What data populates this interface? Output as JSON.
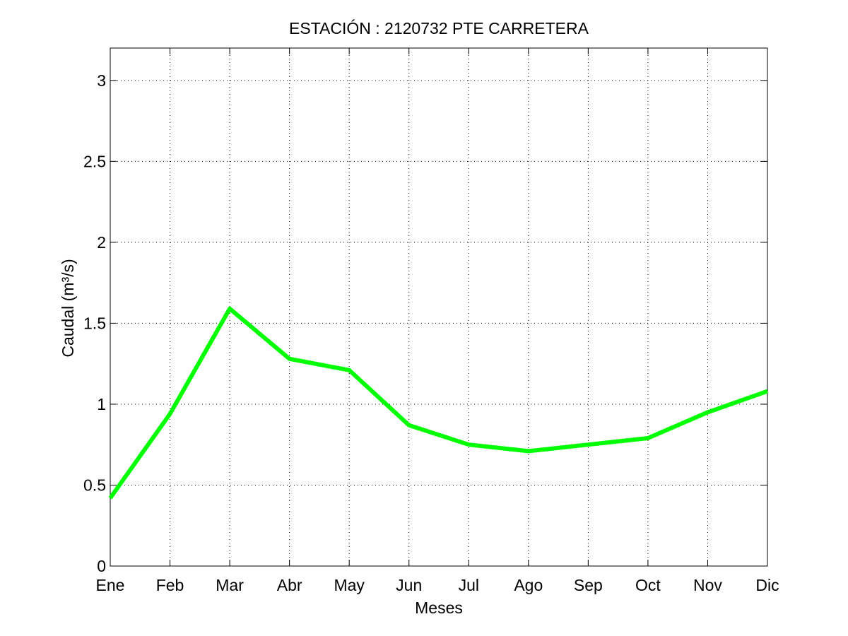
{
  "chart_data": {
    "type": "line",
    "title": "ESTACIÓN :  2120732  PTE CARRETERA",
    "xlabel": "Meses",
    "ylabel": "Caudal (m³/s)",
    "categories": [
      "Ene",
      "Feb",
      "Mar",
      "Abr",
      "May",
      "Jun",
      "Jul",
      "Ago",
      "Sep",
      "Oct",
      "Nov",
      "Dic"
    ],
    "series": [
      {
        "values": [
          0.42,
          0.94,
          1.59,
          1.28,
          1.21,
          0.87,
          0.75,
          0.71,
          0.75,
          0.79,
          0.95,
          1.08
        ],
        "color": "#00ff00"
      }
    ],
    "ylim": [
      0,
      3.2
    ],
    "yticks": [
      0,
      0.5,
      1,
      1.5,
      2,
      2.5,
      3
    ],
    "ytick_labels": [
      "0",
      "0.5",
      "1",
      "1.5",
      "2",
      "2.5",
      "3"
    ],
    "grid": true
  }
}
